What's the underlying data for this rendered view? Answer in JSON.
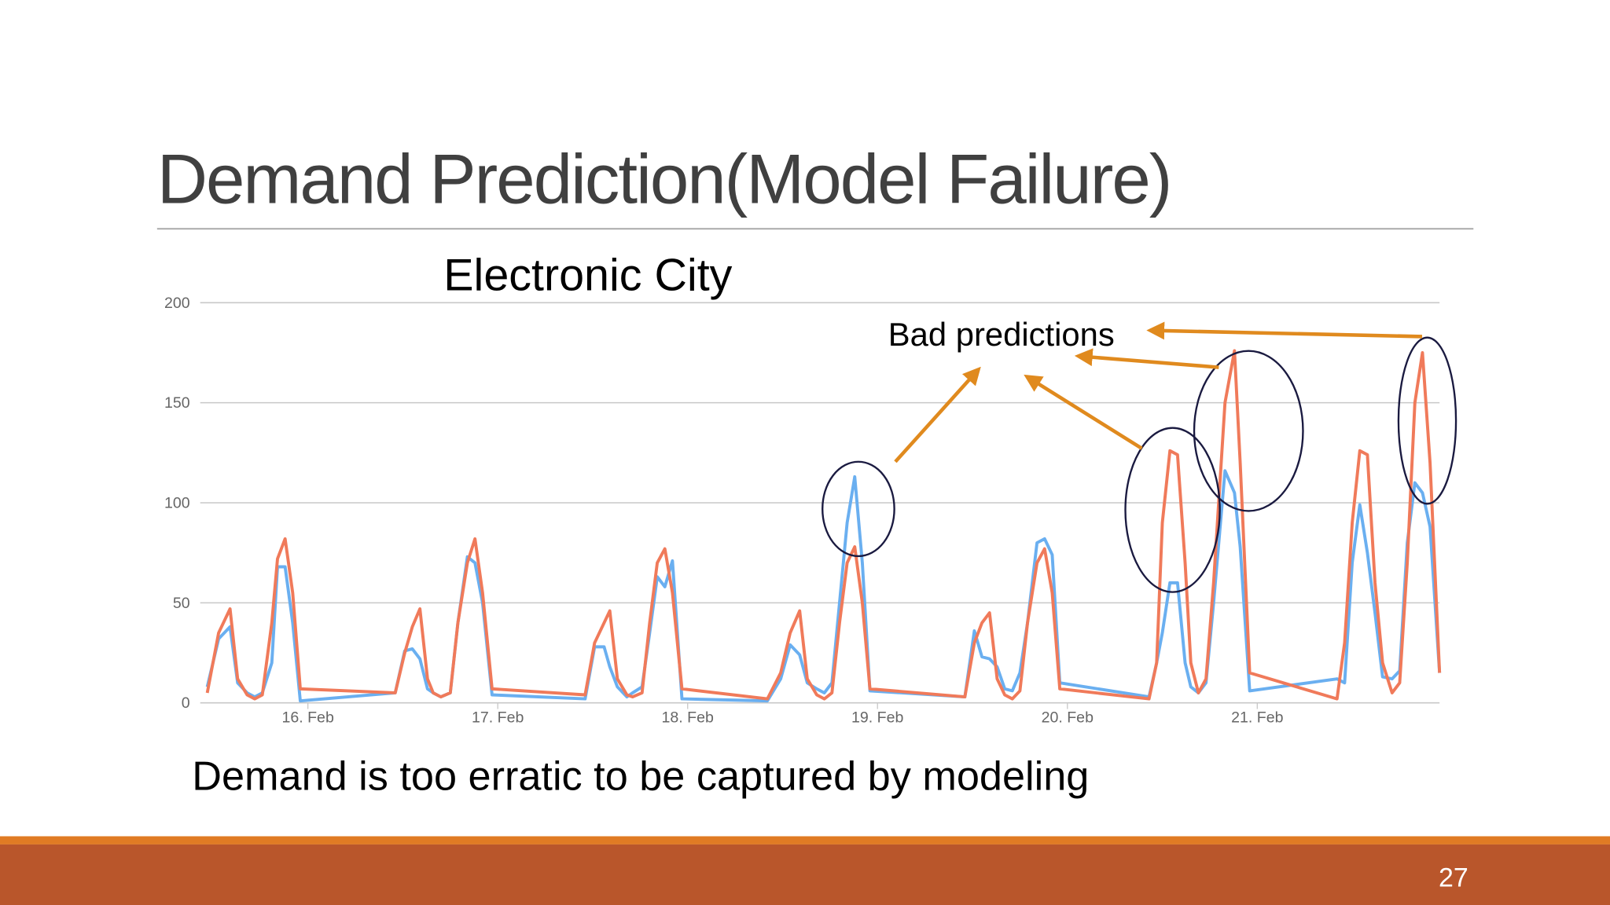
{
  "title": "Demand Prediction(Model Failure)",
  "caption": "Demand is too erratic to be captured by modeling",
  "page_number": "27",
  "chart_data": {
    "type": "line",
    "title": "Electronic City",
    "annotations": [
      "Bad predictions"
    ],
    "x": [
      15.47,
      15.53,
      15.59,
      15.63,
      15.68,
      15.72,
      15.76,
      15.81,
      15.84,
      15.88,
      15.92,
      15.96,
      16.46,
      16.51,
      16.55,
      16.59,
      16.63,
      16.66,
      16.7,
      16.75,
      16.79,
      16.84,
      16.88,
      16.92,
      16.97,
      17.46,
      17.51,
      17.56,
      17.59,
      17.63,
      17.68,
      17.71,
      17.76,
      17.8,
      17.84,
      17.88,
      17.92,
      17.97,
      18.42,
      18.49,
      18.54,
      18.59,
      18.63,
      18.68,
      18.72,
      18.76,
      18.8,
      18.84,
      18.88,
      18.92,
      18.96,
      19.46,
      19.51,
      19.55,
      19.59,
      19.63,
      19.67,
      19.71,
      19.75,
      19.79,
      19.84,
      19.88,
      19.92,
      19.96,
      20.43,
      20.47,
      20.5,
      20.54,
      20.58,
      20.62,
      20.65,
      20.69,
      20.73,
      20.77,
      20.83,
      20.88,
      20.91,
      20.96,
      21.42,
      21.46,
      21.5,
      21.54,
      21.58,
      21.62,
      21.66,
      21.71,
      21.75,
      21.79,
      21.83,
      21.87,
      21.91,
      21.96
    ],
    "series": [
      {
        "color": "#6aaff0",
        "values": [
          8,
          32,
          38,
          10,
          5,
          3,
          5,
          20,
          68,
          68,
          40,
          1,
          5,
          26,
          27,
          22,
          7,
          5,
          3,
          5,
          40,
          73,
          70,
          50,
          4,
          2,
          28,
          28,
          18,
          8,
          3,
          5,
          8,
          35,
          63,
          58,
          71,
          2,
          1,
          12,
          29,
          24,
          10,
          7,
          5,
          10,
          50,
          90,
          113,
          70,
          6,
          3,
          36,
          23,
          22,
          18,
          7,
          6,
          15,
          40,
          80,
          82,
          74,
          10,
          3,
          20,
          35,
          60,
          60,
          20,
          8,
          5,
          10,
          50,
          116,
          105,
          78,
          6,
          12,
          10,
          70,
          99,
          75,
          45,
          13,
          12,
          16,
          80,
          110,
          105,
          88,
          15
        ]
      },
      {
        "color": "#f07a5a",
        "values": [
          5,
          35,
          47,
          12,
          4,
          2,
          4,
          40,
          72,
          82,
          55,
          7,
          5,
          25,
          38,
          47,
          12,
          5,
          3,
          5,
          40,
          70,
          82,
          55,
          7,
          4,
          30,
          40,
          46,
          12,
          4,
          3,
          5,
          40,
          70,
          77,
          55,
          7,
          2,
          15,
          35,
          46,
          12,
          4,
          2,
          5,
          40,
          70,
          78,
          50,
          7,
          3,
          30,
          40,
          45,
          12,
          4,
          2,
          6,
          40,
          70,
          77,
          55,
          7,
          2,
          20,
          90,
          126,
          124,
          70,
          20,
          5,
          12,
          60,
          150,
          176,
          120,
          15,
          2,
          30,
          90,
          126,
          124,
          60,
          20,
          5,
          10,
          70,
          150,
          175,
          120,
          15
        ]
      }
    ],
    "xlim": [
      15.46,
      21.96
    ],
    "xticks": [
      {
        "value": 16,
        "label": "16. Feb"
      },
      {
        "value": 17,
        "label": "17. Feb"
      },
      {
        "value": 18,
        "label": "18. Feb"
      },
      {
        "value": 19,
        "label": "19. Feb"
      },
      {
        "value": 20,
        "label": "20. Feb"
      },
      {
        "value": 21,
        "label": "21. Feb"
      }
    ],
    "ylim": [
      0,
      200
    ],
    "yticks": [
      0,
      50,
      100,
      150,
      200
    ],
    "grid": true
  }
}
